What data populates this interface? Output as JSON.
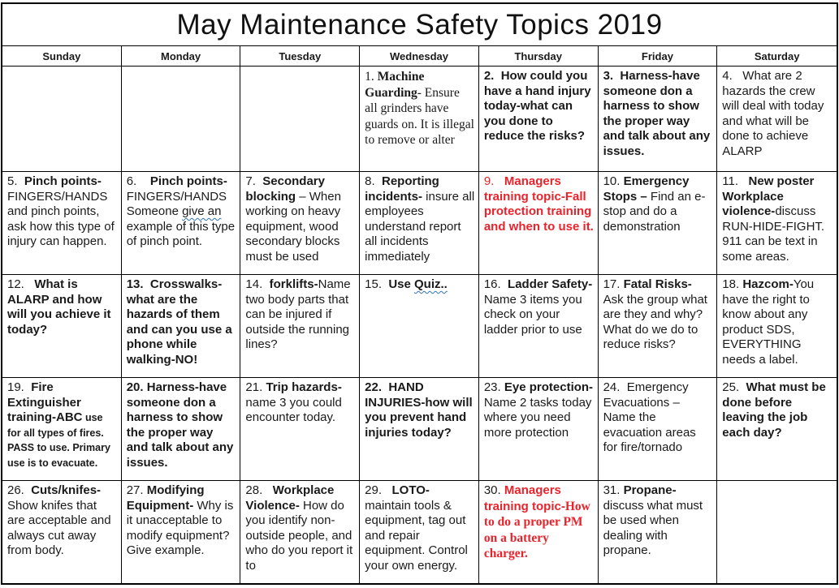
{
  "title": "May Maintenance Safety Topics 2019",
  "day_headers": [
    "Sunday",
    "Monday",
    "Tuesday",
    "Wednesday",
    "Thursday",
    "Friday",
    "Saturday"
  ],
  "colors": {
    "accent_red": "#e8232b",
    "squiggle_blue": "#2e74b5",
    "border_black": "#000000"
  },
  "weeks": [
    [
      {
        "runs": []
      },
      {
        "runs": []
      },
      {
        "runs": []
      },
      {
        "runs": [
          {
            "t": "1. ",
            "c": "serif"
          },
          {
            "t": "Machine Guarding",
            "c": "serif bold"
          },
          {
            "t": "- Ensure all grinders have guards on. It is illegal to remove or alter",
            "c": "serif"
          }
        ]
      },
      {
        "runs": [
          {
            "t": "2.  ",
            "c": "bold"
          },
          {
            "t": "How could you have a hand injury today-what can you done to reduce the risks?",
            "c": "bold"
          }
        ]
      },
      {
        "runs": [
          {
            "t": "3.  ",
            "c": "bold"
          },
          {
            "t": "Harness-have someone don a harness to show the proper way and talk about any issues.",
            "c": "bold"
          }
        ]
      },
      {
        "runs": [
          {
            "t": "4.   What are 2 hazards the crew will deal with today and what will be done to achieve ALARP",
            "c": ""
          }
        ]
      }
    ],
    [
      {
        "runs": [
          {
            "t": "5.  ",
            "c": ""
          },
          {
            "t": "Pinch points-",
            "c": "bold"
          },
          {
            "t": "FINGERS/HANDS and pinch points, ask how this type of injury can happen.",
            "c": ""
          }
        ]
      },
      {
        "runs": [
          {
            "t": "6.    ",
            "c": ""
          },
          {
            "t": "Pinch points-",
            "c": "bold"
          },
          {
            "t": "FINGERS/HANDS Someone ",
            "c": ""
          },
          {
            "t": "give an",
            "c": "squiggle"
          },
          {
            "t": " example of this type of pinch point.",
            "c": ""
          }
        ]
      },
      {
        "runs": [
          {
            "t": "7.  ",
            "c": ""
          },
          {
            "t": "Secondary blocking",
            "c": "bold"
          },
          {
            "t": " – When working on heavy equipment, wood secondary blocks must be used",
            "c": ""
          }
        ]
      },
      {
        "runs": [
          {
            "t": "8.  ",
            "c": ""
          },
          {
            "t": "Reporting incidents-",
            "c": "bold"
          },
          {
            "t": " insure all employees understand report all incidents immediately",
            "c": ""
          }
        ]
      },
      {
        "runs": [
          {
            "t": "9.   ",
            "c": "red"
          },
          {
            "t": "Managers training topic-Fall protection training and when to use it.",
            "c": "red bold"
          }
        ]
      },
      {
        "runs": [
          {
            "t": "10. ",
            "c": ""
          },
          {
            "t": "Emergency Stops –",
            "c": "bold"
          },
          {
            "t": " Find an e-stop and do a demonstration",
            "c": ""
          }
        ]
      },
      {
        "runs": [
          {
            "t": "11.   ",
            "c": ""
          },
          {
            "t": "New poster Workplace violence-",
            "c": "bold"
          },
          {
            "t": "discuss RUN-HIDE-FIGHT. 911 can be text in some areas.",
            "c": ""
          }
        ]
      }
    ],
    [
      {
        "runs": [
          {
            "t": "12.   ",
            "c": ""
          },
          {
            "t": "What is ALARP and how will you achieve it today?",
            "c": "bold"
          }
        ]
      },
      {
        "runs": [
          {
            "t": "13.  ",
            "c": "bold"
          },
          {
            "t": "Crosswalks-what are the hazards of them and can you use a phone while walking-NO!",
            "c": "bold"
          }
        ]
      },
      {
        "runs": [
          {
            "t": "14.  ",
            "c": ""
          },
          {
            "t": "forklifts-",
            "c": "bold"
          },
          {
            "t": "Name two body parts that can be injured if outside the running lines?",
            "c": ""
          }
        ]
      },
      {
        "runs": [
          {
            "t": "15.  ",
            "c": ""
          },
          {
            "t": "Use ",
            "c": "bold"
          },
          {
            "t": "Quiz..",
            "c": "bold squiggle"
          }
        ]
      },
      {
        "runs": [
          {
            "t": "16.  ",
            "c": ""
          },
          {
            "t": "Ladder Safety-",
            "c": "bold"
          },
          {
            "t": " Name 3 items you check on your ladder prior to use",
            "c": ""
          }
        ]
      },
      {
        "runs": [
          {
            "t": "17. ",
            "c": ""
          },
          {
            "t": "Fatal Risks-",
            "c": "bold"
          },
          {
            "t": " Ask the group what are they and why? What do we do to reduce risks?",
            "c": ""
          }
        ]
      },
      {
        "runs": [
          {
            "t": "18. ",
            "c": ""
          },
          {
            "t": "Hazcom-",
            "c": "bold"
          },
          {
            "t": "You have the right to know about any product SDS, EVERYTHING needs a label.",
            "c": ""
          }
        ]
      }
    ],
    [
      {
        "runs": [
          {
            "t": "19.  ",
            "c": ""
          },
          {
            "t": "Fire Extinguisher training-ABC",
            "c": "bold"
          },
          {
            "t": " use for all types of fires. PASS to use. Primary use is to evacuate.",
            "c": "small bold"
          }
        ]
      },
      {
        "runs": [
          {
            "t": "20. ",
            "c": "bold"
          },
          {
            "t": "Harness-have someone don a harness to show the proper way and talk about any issues.",
            "c": "bold"
          }
        ]
      },
      {
        "runs": [
          {
            "t": "21. ",
            "c": ""
          },
          {
            "t": "Trip hazards-",
            "c": "bold"
          },
          {
            "t": "name 3 you could encounter today.",
            "c": ""
          }
        ]
      },
      {
        "runs": [
          {
            "t": "22.  ",
            "c": "bold"
          },
          {
            "t": "HAND INJURIES-how will you prevent hand injuries today?",
            "c": "bold"
          }
        ]
      },
      {
        "runs": [
          {
            "t": "23. ",
            "c": ""
          },
          {
            "t": "Eye protection-",
            "c": "bold"
          },
          {
            "t": "Name 2 tasks today where you need more protection",
            "c": ""
          }
        ]
      },
      {
        "runs": [
          {
            "t": "24.  Emergency Evacuations – Name the evacuation areas for fire/tornado",
            "c": ""
          }
        ]
      },
      {
        "runs": [
          {
            "t": "25.  ",
            "c": ""
          },
          {
            "t": "What must be done before leaving the job each day?",
            "c": "bold"
          }
        ]
      }
    ],
    [
      {
        "runs": [
          {
            "t": "26.  ",
            "c": ""
          },
          {
            "t": "Cuts/knifes-",
            "c": "bold"
          },
          {
            "t": "Show knifes that are acceptable and always cut away from body.",
            "c": ""
          }
        ]
      },
      {
        "runs": [
          {
            "t": "27. ",
            "c": ""
          },
          {
            "t": "Modifying Equipment-",
            "c": "bold"
          },
          {
            "t": " Why is it unacceptable to modify equipment? Give example.",
            "c": ""
          }
        ]
      },
      {
        "runs": [
          {
            "t": "28.   ",
            "c": ""
          },
          {
            "t": "Workplace Violence-",
            "c": "bold"
          },
          {
            "t": " How do you identify non-outside people, and who do you report it to",
            "c": ""
          }
        ]
      },
      {
        "runs": [
          {
            "t": "29.   ",
            "c": ""
          },
          {
            "t": "LOTO-",
            "c": "bold"
          },
          {
            "t": "maintain tools & equipment, tag out and repair equipment. Control your own energy.",
            "c": ""
          }
        ]
      },
      {
        "runs": [
          {
            "t": "30. ",
            "c": ""
          },
          {
            "t": "Managers training topic-",
            "c": "red bold"
          },
          {
            "t": "How to do a proper PM on a battery charger.",
            "c": "red bold serif"
          }
        ]
      },
      {
        "runs": [
          {
            "t": "31. ",
            "c": ""
          },
          {
            "t": "Propane-",
            "c": "bold"
          },
          {
            "t": "discuss what must be used when dealing with propane.",
            "c": ""
          }
        ]
      },
      {
        "runs": []
      }
    ]
  ]
}
